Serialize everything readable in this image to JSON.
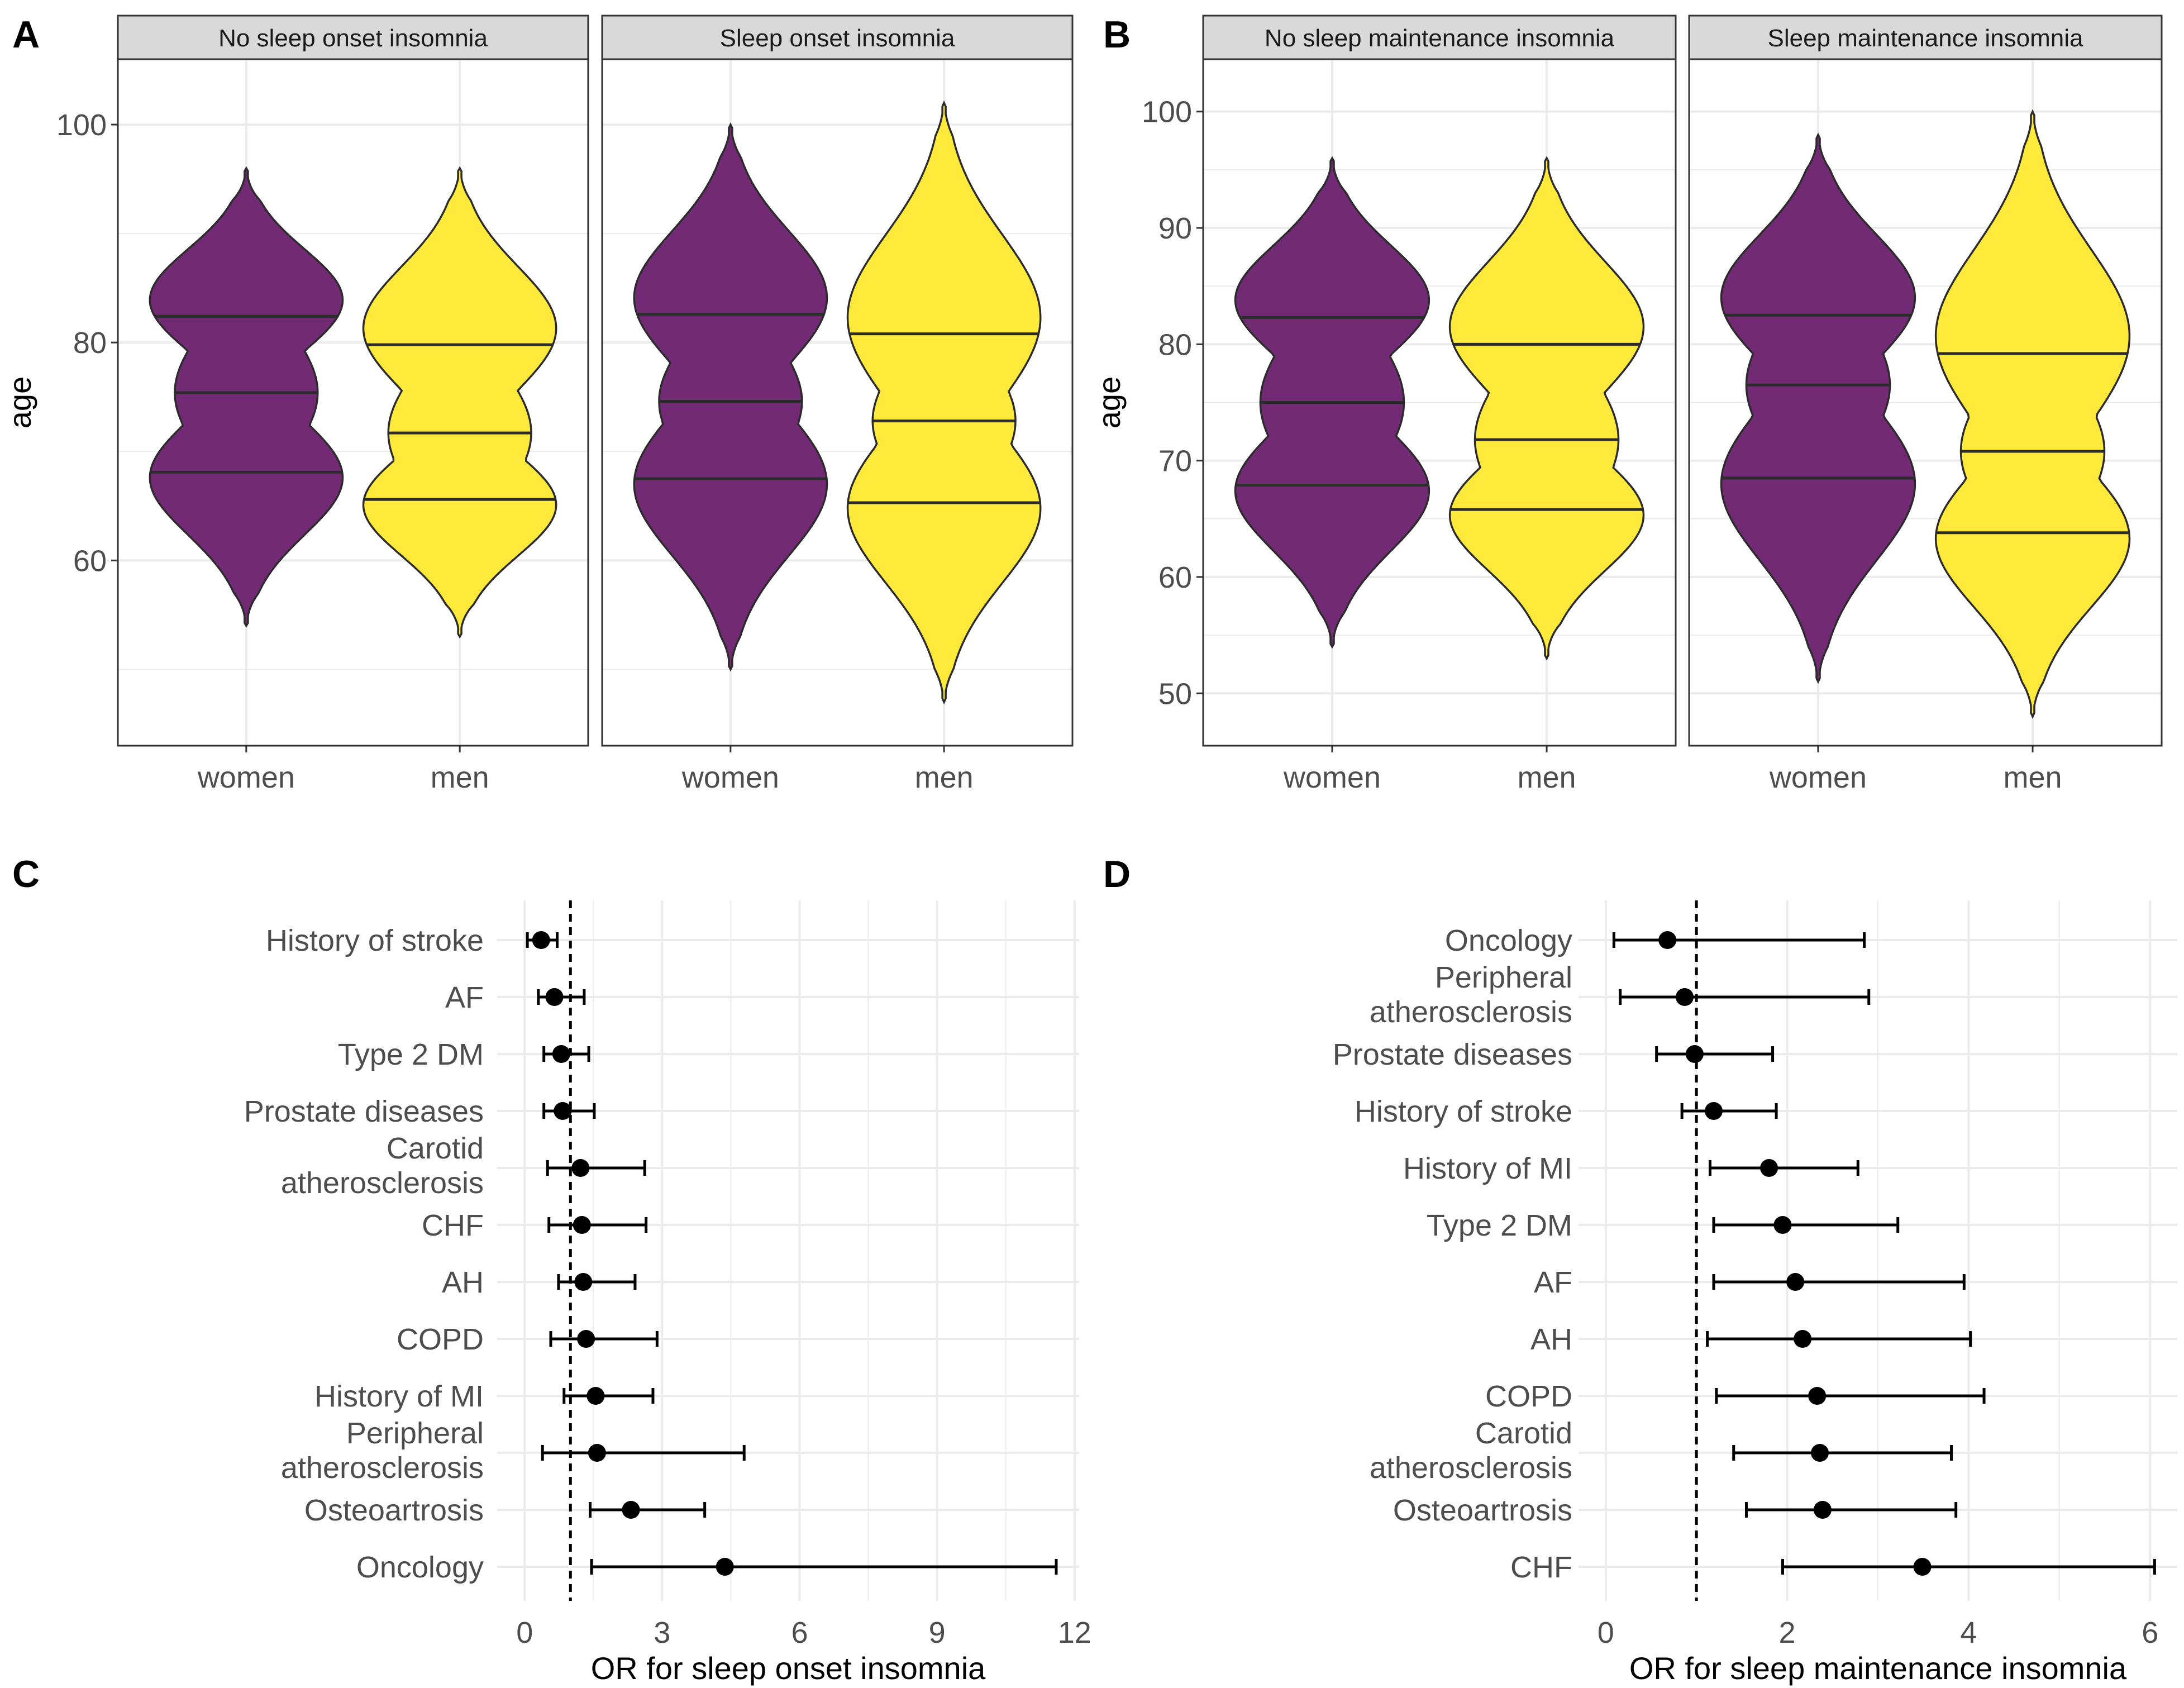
{
  "figure": {
    "panels": [
      "A",
      "B",
      "C",
      "D"
    ],
    "colors": {
      "women": "#732a75",
      "men": "#ffe93b",
      "outline": "#2b2b2b",
      "strip_bg": "#d9d9d9",
      "grid": "#ebebeb",
      "point": "#000000"
    }
  },
  "chart_data": [
    {
      "panel": "A",
      "type": "violin",
      "ylabel": "age",
      "ylim": [
        43,
        106
      ],
      "yticks": [
        60,
        80,
        100
      ],
      "categories": [
        "women",
        "men"
      ],
      "facets": [
        {
          "title": "No sleep onset insomnia",
          "groups": [
            {
              "name": "women",
              "min": 54,
              "max": 96,
              "quantiles": [
                68.1,
                75.4,
                82.4
              ]
            },
            {
              "name": "men",
              "min": 53,
              "max": 96,
              "quantiles": [
                65.6,
                71.7,
                79.8
              ]
            }
          ]
        },
        {
          "title": "Sleep onset insomnia",
          "groups": [
            {
              "name": "women",
              "min": 50,
              "max": 100,
              "quantiles": [
                67.5,
                74.6,
                82.6
              ]
            },
            {
              "name": "men",
              "min": 47,
              "max": 102,
              "quantiles": [
                65.3,
                72.8,
                80.8
              ]
            }
          ]
        }
      ]
    },
    {
      "panel": "B",
      "type": "violin",
      "ylabel": "age",
      "ylim": [
        45.5,
        104.5
      ],
      "yticks": [
        50,
        60,
        70,
        80,
        90,
        100
      ],
      "categories": [
        "women",
        "men"
      ],
      "facets": [
        {
          "title": "No sleep maintenance insomnia",
          "groups": [
            {
              "name": "women",
              "min": 54,
              "max": 96,
              "quantiles": [
                67.9,
                75.0,
                82.3
              ]
            },
            {
              "name": "men",
              "min": 53,
              "max": 96,
              "quantiles": [
                65.8,
                71.8,
                80.0
              ]
            }
          ]
        },
        {
          "title": "Sleep maintenance insomnia",
          "groups": [
            {
              "name": "women",
              "min": 51,
              "max": 98,
              "quantiles": [
                68.5,
                76.5,
                82.5
              ]
            },
            {
              "name": "men",
              "min": 48,
              "max": 100,
              "quantiles": [
                63.8,
                70.8,
                79.2
              ]
            }
          ]
        }
      ]
    },
    {
      "panel": "C",
      "type": "forest",
      "xlabel": "OR for sleep onset insomnia",
      "xlim": [
        -0.6,
        12.1
      ],
      "xticks": [
        0,
        3,
        6,
        9,
        12
      ],
      "reference_line": 1,
      "rows": [
        {
          "label": "History of stroke",
          "or": 0.36,
          "lo": 0.06,
          "hi": 0.71
        },
        {
          "label": "AF",
          "or": 0.65,
          "lo": 0.3,
          "hi": 1.3
        },
        {
          "label": "Type 2 DM",
          "or": 0.8,
          "lo": 0.42,
          "hi": 1.4
        },
        {
          "label": "Prostate diseases",
          "or": 0.83,
          "lo": 0.42,
          "hi": 1.52
        },
        {
          "label": "Carotid\natherosclerosis",
          "or": 1.22,
          "lo": 0.5,
          "hi": 2.62
        },
        {
          "label": "CHF",
          "or": 1.25,
          "lo": 0.53,
          "hi": 2.65
        },
        {
          "label": "AH",
          "or": 1.28,
          "lo": 0.74,
          "hi": 2.41
        },
        {
          "label": "COPD",
          "or": 1.34,
          "lo": 0.57,
          "hi": 2.89
        },
        {
          "label": "History of MI",
          "or": 1.55,
          "lo": 0.86,
          "hi": 2.8
        },
        {
          "label": "Peripheral\natherosclerosis",
          "or": 1.58,
          "lo": 0.39,
          "hi": 4.79
        },
        {
          "label": "Osteoartrosis",
          "or": 2.32,
          "lo": 1.43,
          "hi": 3.93
        },
        {
          "label": "Oncology",
          "or": 4.37,
          "lo": 1.46,
          "hi": 11.6
        }
      ]
    },
    {
      "panel": "D",
      "type": "forest",
      "xlabel": "OR for sleep maintenance insomnia",
      "xlim": [
        -0.3,
        6.3
      ],
      "xticks": [
        0,
        2,
        4,
        6
      ],
      "reference_line": 1,
      "rows": [
        {
          "label": "Oncology",
          "or": 0.68,
          "lo": 0.09,
          "hi": 2.85
        },
        {
          "label": "Peripheral\natherosclerosis",
          "or": 0.87,
          "lo": 0.16,
          "hi": 2.9
        },
        {
          "label": "Prostate diseases",
          "or": 0.98,
          "lo": 0.56,
          "hi": 1.84
        },
        {
          "label": "History of stroke",
          "or": 1.19,
          "lo": 0.84,
          "hi": 1.88
        },
        {
          "label": "History of MI",
          "or": 1.8,
          "lo": 1.15,
          "hi": 2.78
        },
        {
          "label": "Type 2 DM",
          "or": 1.95,
          "lo": 1.19,
          "hi": 3.22
        },
        {
          "label": "AF",
          "or": 2.09,
          "lo": 1.19,
          "hi": 3.95
        },
        {
          "label": "AH",
          "or": 2.17,
          "lo": 1.12,
          "hi": 4.02
        },
        {
          "label": "COPD",
          "or": 2.33,
          "lo": 1.22,
          "hi": 4.17
        },
        {
          "label": "Carotid\natherosclerosis",
          "or": 2.36,
          "lo": 1.41,
          "hi": 3.81
        },
        {
          "label": "Osteoartrosis",
          "or": 2.39,
          "lo": 1.55,
          "hi": 3.86
        },
        {
          "label": "CHF",
          "or": 3.49,
          "lo": 1.95,
          "hi": 6.05
        }
      ]
    }
  ]
}
